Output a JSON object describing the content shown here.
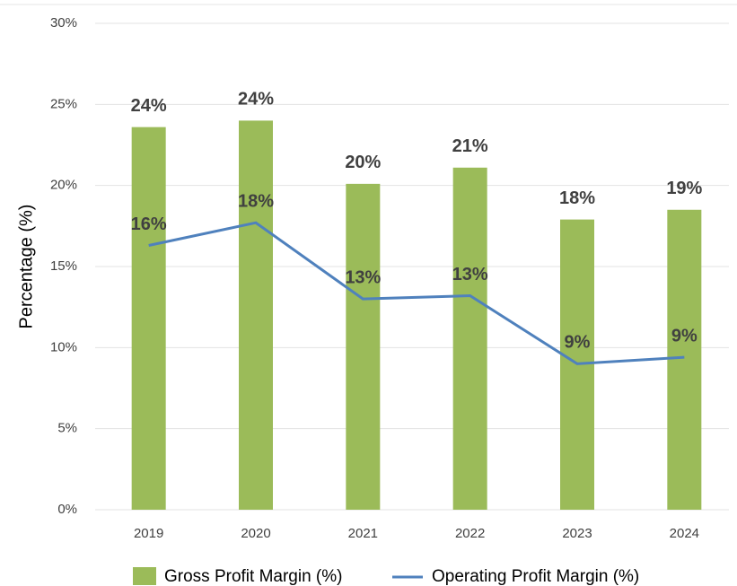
{
  "chart_data": {
    "type": "bar",
    "ylabel": "Percentage (%)",
    "categories": [
      "2019",
      "2020",
      "2021",
      "2022",
      "2023",
      "2024"
    ],
    "series": [
      {
        "name": "Gross Profit Margin (%)",
        "type": "bar",
        "color": "#9bbb59",
        "values": [
          23.6,
          24.0,
          20.1,
          21.1,
          17.9,
          18.5
        ],
        "value_labels": [
          "24%",
          "24%",
          "20%",
          "21%",
          "18%",
          "19%"
        ]
      },
      {
        "name": "Operating Profit Margin (%)",
        "type": "line",
        "color": "#4f81bd",
        "values": [
          16.3,
          17.7,
          13.0,
          13.2,
          9.0,
          9.4
        ],
        "value_labels": [
          "16%",
          "18%",
          "13%",
          "13%",
          "9%",
          "9%"
        ]
      }
    ],
    "ylim": [
      0,
      30
    ],
    "yticks": [
      {
        "value": 0,
        "label": "0%"
      },
      {
        "value": 5,
        "label": "5%"
      },
      {
        "value": 10,
        "label": "10%"
      },
      {
        "value": 15,
        "label": "15%"
      },
      {
        "value": 20,
        "label": "20%"
      },
      {
        "value": 25,
        "label": "25%"
      },
      {
        "value": 30,
        "label": "30%"
      }
    ],
    "grid": true,
    "legend": "bottom"
  }
}
